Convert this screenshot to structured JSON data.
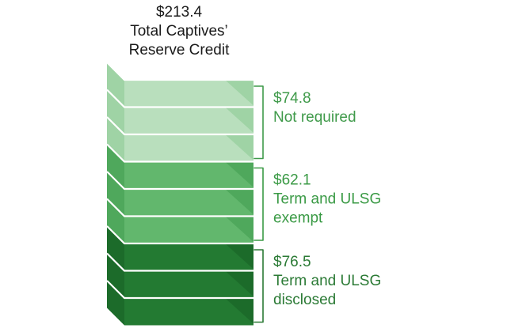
{
  "chart_data": {
    "type": "bar",
    "title_value": "$213.4",
    "title_lines": [
      "Total Captives’",
      "Reserve Credit"
    ],
    "total": 213.4,
    "segments": [
      {
        "value": 74.8,
        "value_label": "$74.8",
        "label_lines": [
          "Not required"
        ],
        "layers": 3,
        "colors": [
          "#b9dfbd",
          "#9fd3a5"
        ],
        "text_color": "#3f9a4a"
      },
      {
        "value": 62.1,
        "value_label": "$62.1",
        "label_lines": [
          "Term and ULSG",
          "exempt"
        ],
        "layers": 3,
        "colors": [
          "#62b76d",
          "#4fa85c"
        ],
        "text_color": "#3a9a45"
      },
      {
        "value": 76.5,
        "value_label": "$76.5",
        "label_lines": [
          "Term and ULSG",
          "disclosed"
        ],
        "layers": 3,
        "colors": [
          "#237a32",
          "#1c6b2a"
        ],
        "text_color": "#2b7a35"
      }
    ]
  }
}
